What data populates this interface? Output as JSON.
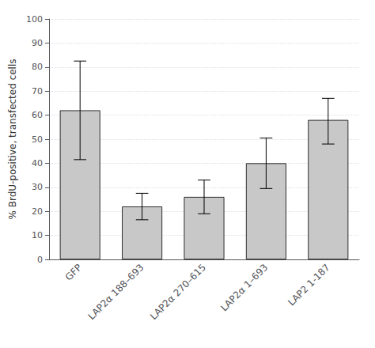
{
  "chart_data": {
    "type": "bar",
    "categories": [
      "GFP",
      "LAP2α 188–693",
      "LAP2α 270–615",
      "LAP2α 1–693",
      "LAP2 1-187"
    ],
    "values": [
      62.0,
      22.0,
      26.0,
      40.0,
      58.0
    ],
    "errors_upper": [
      20.5,
      5.5,
      7.0,
      10.5,
      9.0
    ],
    "errors_lower": [
      20.5,
      5.5,
      7.0,
      10.5,
      10.0
    ],
    "color": "#c8c8c8",
    "ylabel": "% BrdU-positive, transfected cells",
    "ylim": [
      0,
      100
    ],
    "yticks": [
      0,
      10,
      20,
      30,
      40,
      50,
      60,
      70,
      80,
      90,
      100
    ],
    "grid": true
  }
}
